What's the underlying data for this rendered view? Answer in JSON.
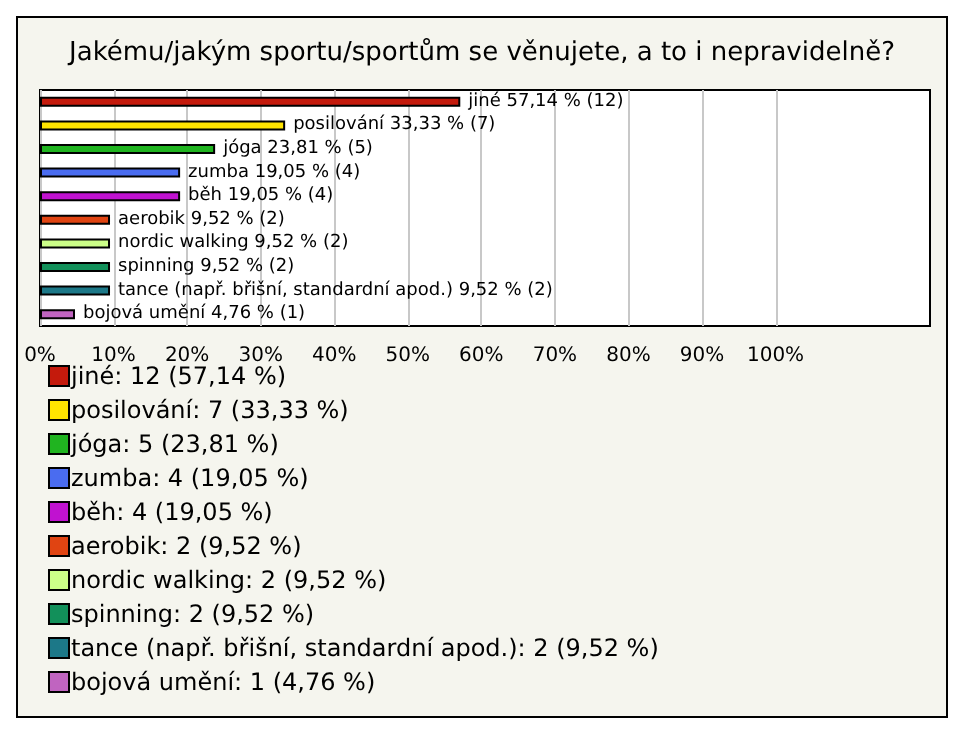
{
  "chart_data": {
    "type": "bar",
    "orientation": "horizontal",
    "stacked": true,
    "title": "Jakému/jakým sportu/sportům se věnujete, a to i nepravidelně?",
    "categories": [
      null,
      null,
      null,
      null,
      null,
      null,
      null,
      null,
      null,
      null
    ],
    "xlim": [
      0,
      121
    ],
    "xticks": [
      {
        "value": 0,
        "label": "0%"
      },
      {
        "value": 10,
        "label": "10%"
      },
      {
        "value": 20,
        "label": "20%"
      },
      {
        "value": 30,
        "label": "30%"
      },
      {
        "value": 40,
        "label": "40%"
      },
      {
        "value": 50,
        "label": "50%"
      },
      {
        "value": 60,
        "label": "60%"
      },
      {
        "value": 70,
        "label": "70%"
      },
      {
        "value": 80,
        "label": "80%"
      },
      {
        "value": 90,
        "label": "90%"
      },
      {
        "value": 100,
        "label": "100%"
      }
    ],
    "grid": "x",
    "legend": "bottom",
    "tick_labels": "x",
    "series": [
      {
        "name": "jiné: 12 (57,14 %)",
        "color": "#c41a0c",
        "values": [
          57.14,
          null,
          null,
          null,
          null,
          null,
          null,
          null,
          null,
          null
        ],
        "value_labels": [
          "jiné 57,14 % (12)",
          null,
          null,
          null,
          null,
          null,
          null,
          null,
          null,
          null
        ]
      },
      {
        "name": "posilování: 7 (33,33 %)",
        "color": "#ffe400",
        "values": [
          null,
          33.33,
          null,
          null,
          null,
          null,
          null,
          null,
          null,
          null
        ],
        "value_labels": [
          null,
          "posilování 33,33 % (7)",
          null,
          null,
          null,
          null,
          null,
          null,
          null,
          null
        ]
      },
      {
        "name": "jóga: 5 (23,81 %)",
        "color": "#20b420",
        "values": [
          null,
          null,
          23.81,
          null,
          null,
          null,
          null,
          null,
          null,
          null
        ],
        "value_labels": [
          null,
          null,
          "jóga 23,81 % (5)",
          null,
          null,
          null,
          null,
          null,
          null,
          null
        ]
      },
      {
        "name": "zumba: 4 (19,05 %)",
        "color": "#4a6cf0",
        "values": [
          null,
          null,
          null,
          19.05,
          null,
          null,
          null,
          null,
          null,
          null
        ],
        "value_labels": [
          null,
          null,
          null,
          "zumba 19,05 % (4)",
          null,
          null,
          null,
          null,
          null,
          null
        ]
      },
      {
        "name": "běh: 4 (19,05 %)",
        "color": "#c012d0",
        "values": [
          null,
          null,
          null,
          null,
          19.05,
          null,
          null,
          null,
          null,
          null
        ],
        "value_labels": [
          null,
          null,
          null,
          null,
          "běh 19,05 % (4)",
          null,
          null,
          null,
          null,
          null
        ]
      },
      {
        "name": "aerobik: 2 (9,52 %)",
        "color": "#e04412",
        "values": [
          null,
          null,
          null,
          null,
          null,
          9.52,
          null,
          null,
          null,
          null
        ],
        "value_labels": [
          null,
          null,
          null,
          null,
          null,
          "aerobik 9,52 % (2)",
          null,
          null,
          null,
          null
        ]
      },
      {
        "name": "nordic walking: 2 (9,52 %)",
        "color": "#ccff88",
        "values": [
          null,
          null,
          null,
          null,
          null,
          null,
          9.52,
          null,
          null,
          null
        ],
        "value_labels": [
          null,
          null,
          null,
          null,
          null,
          null,
          "nordic walking 9,52 % (2)",
          null,
          null,
          null
        ]
      },
      {
        "name": "spinning: 2 (9,52 %)",
        "color": "#12905a",
        "values": [
          null,
          null,
          null,
          null,
          null,
          null,
          null,
          9.52,
          null,
          null
        ],
        "value_labels": [
          null,
          null,
          null,
          null,
          null,
          null,
          null,
          "spinning 9,52 % (2)",
          null,
          null
        ]
      },
      {
        "name": "tance (např. břišní, standardní apod.): 2 (9,52 %)",
        "color": "#1c7888",
        "values": [
          null,
          null,
          null,
          null,
          null,
          null,
          null,
          null,
          9.52,
          null
        ],
        "value_labels": [
          null,
          null,
          null,
          null,
          null,
          null,
          null,
          null,
          "tance (např. břišní, standardní apod.) 9,52 % (2)",
          null
        ]
      },
      {
        "name": "bojová umění: 1 (4,76 %)",
        "color": "#c064c0",
        "values": [
          null,
          null,
          null,
          null,
          null,
          null,
          null,
          null,
          null,
          4.76
        ],
        "value_labels": [
          null,
          null,
          null,
          null,
          null,
          null,
          null,
          null,
          null,
          "bojová umění 4,76 % (1)"
        ]
      }
    ]
  }
}
